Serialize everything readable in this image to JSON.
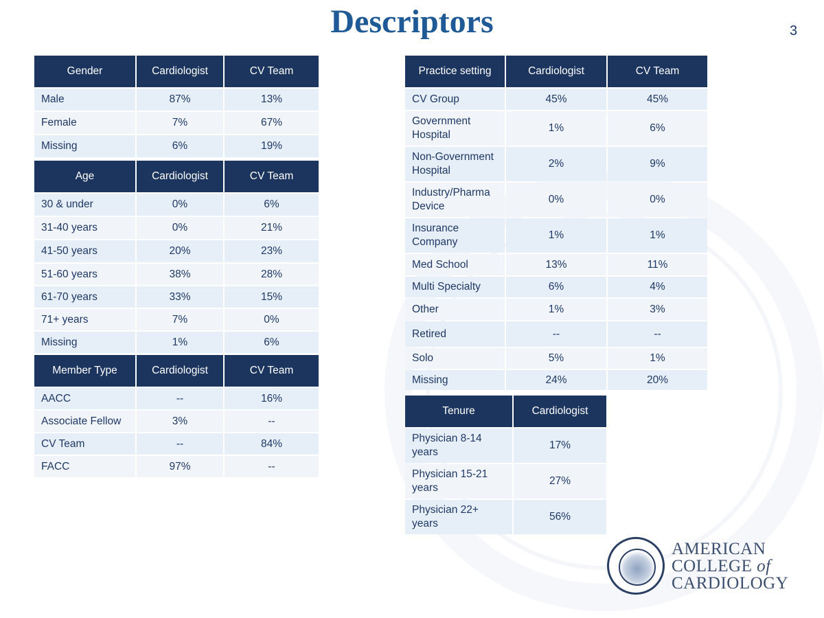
{
  "slide": {
    "title": "Descriptors",
    "page_number": "3"
  },
  "tables": {
    "gender": {
      "headers": [
        "Gender",
        "Cardiologist",
        "CV Team"
      ],
      "rows": [
        [
          "Male",
          "87%",
          "13%"
        ],
        [
          "Female",
          "7%",
          "67%"
        ],
        [
          "Missing",
          "6%",
          "19%"
        ]
      ]
    },
    "age": {
      "headers": [
        "Age",
        "Cardiologist",
        "CV Team"
      ],
      "rows": [
        [
          "30 & under",
          "0%",
          "6%"
        ],
        [
          "31-40 years",
          "0%",
          "21%"
        ],
        [
          "41-50 years",
          "20%",
          "23%"
        ],
        [
          "51-60 years",
          "38%",
          "28%"
        ],
        [
          "61-70 years",
          "33%",
          "15%"
        ],
        [
          "71+ years",
          "7%",
          "0%"
        ],
        [
          "Missing",
          "1%",
          "6%"
        ]
      ]
    },
    "member_type": {
      "headers": [
        "Member Type",
        "Cardiologist",
        "CV Team"
      ],
      "rows": [
        [
          "AACC",
          "--",
          "16%"
        ],
        [
          "Associate Fellow",
          "3%",
          "--"
        ],
        [
          "CV Team",
          "--",
          "84%"
        ],
        [
          "FACC",
          "97%",
          "--"
        ]
      ]
    },
    "practice_setting": {
      "headers": [
        "Practice setting",
        "Cardiologist",
        "CV Team"
      ],
      "rows": [
        [
          "CV Group",
          "45%",
          "45%"
        ],
        [
          "Government Hospital",
          "1%",
          "6%"
        ],
        [
          "Non-Government Hospital",
          "2%",
          "9%"
        ],
        [
          "Industry/Pharma Device",
          "0%",
          "0%"
        ],
        [
          "Insurance Company",
          "1%",
          "1%"
        ],
        [
          "Med School",
          "13%",
          "11%"
        ],
        [
          "Multi Specialty",
          "6%",
          "4%"
        ],
        [
          "Other",
          "1%",
          "3%"
        ],
        [
          "Retired",
          "--",
          "--"
        ],
        [
          "Solo",
          "5%",
          "1%"
        ],
        [
          "Missing",
          "24%",
          "20%"
        ]
      ]
    },
    "tenure": {
      "headers": [
        "Tenure",
        "Cardiologist"
      ],
      "rows": [
        [
          "Physician 8-14 years",
          "17%"
        ],
        [
          "Physician 15-21 years",
          "27%"
        ],
        [
          "Physician 22+ years",
          "56%"
        ]
      ]
    }
  },
  "logo": {
    "line1": "AMERICAN",
    "line2": "COLLEGE",
    "line2b": "of",
    "line3": "CARDIOLOGY",
    "seal_text": "AMERICAN COLLEGE OF CARDIOLOGY"
  }
}
